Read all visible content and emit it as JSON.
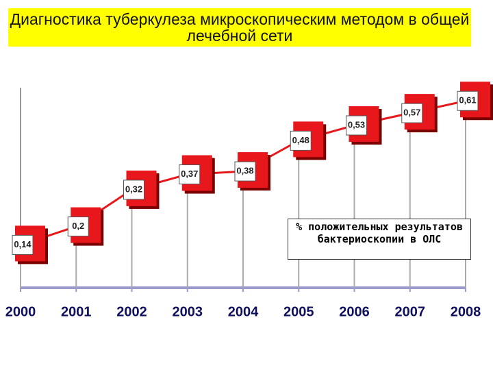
{
  "chart_data": {
    "type": "line",
    "title": "Диагностика туберкулеза микроскопическим методом в общей лечебной сети",
    "categories": [
      "2000",
      "2001",
      "2002",
      "2003",
      "2004",
      "2005",
      "2006",
      "2007",
      "2008"
    ],
    "series": [
      {
        "name": "% положительных результатов бактериоскопии в ОЛС",
        "color": "#e8171c",
        "values": [
          0.14,
          0.2,
          0.32,
          0.37,
          0.38,
          0.48,
          0.53,
          0.57,
          0.61
        ],
        "value_labels": [
          "0,14",
          "0,2",
          "0,32",
          "0,37",
          "0,38",
          "0,48",
          "0,53",
          "0,57",
          "0,61"
        ]
      }
    ],
    "ylim": [
      0,
      0.7
    ]
  }
}
